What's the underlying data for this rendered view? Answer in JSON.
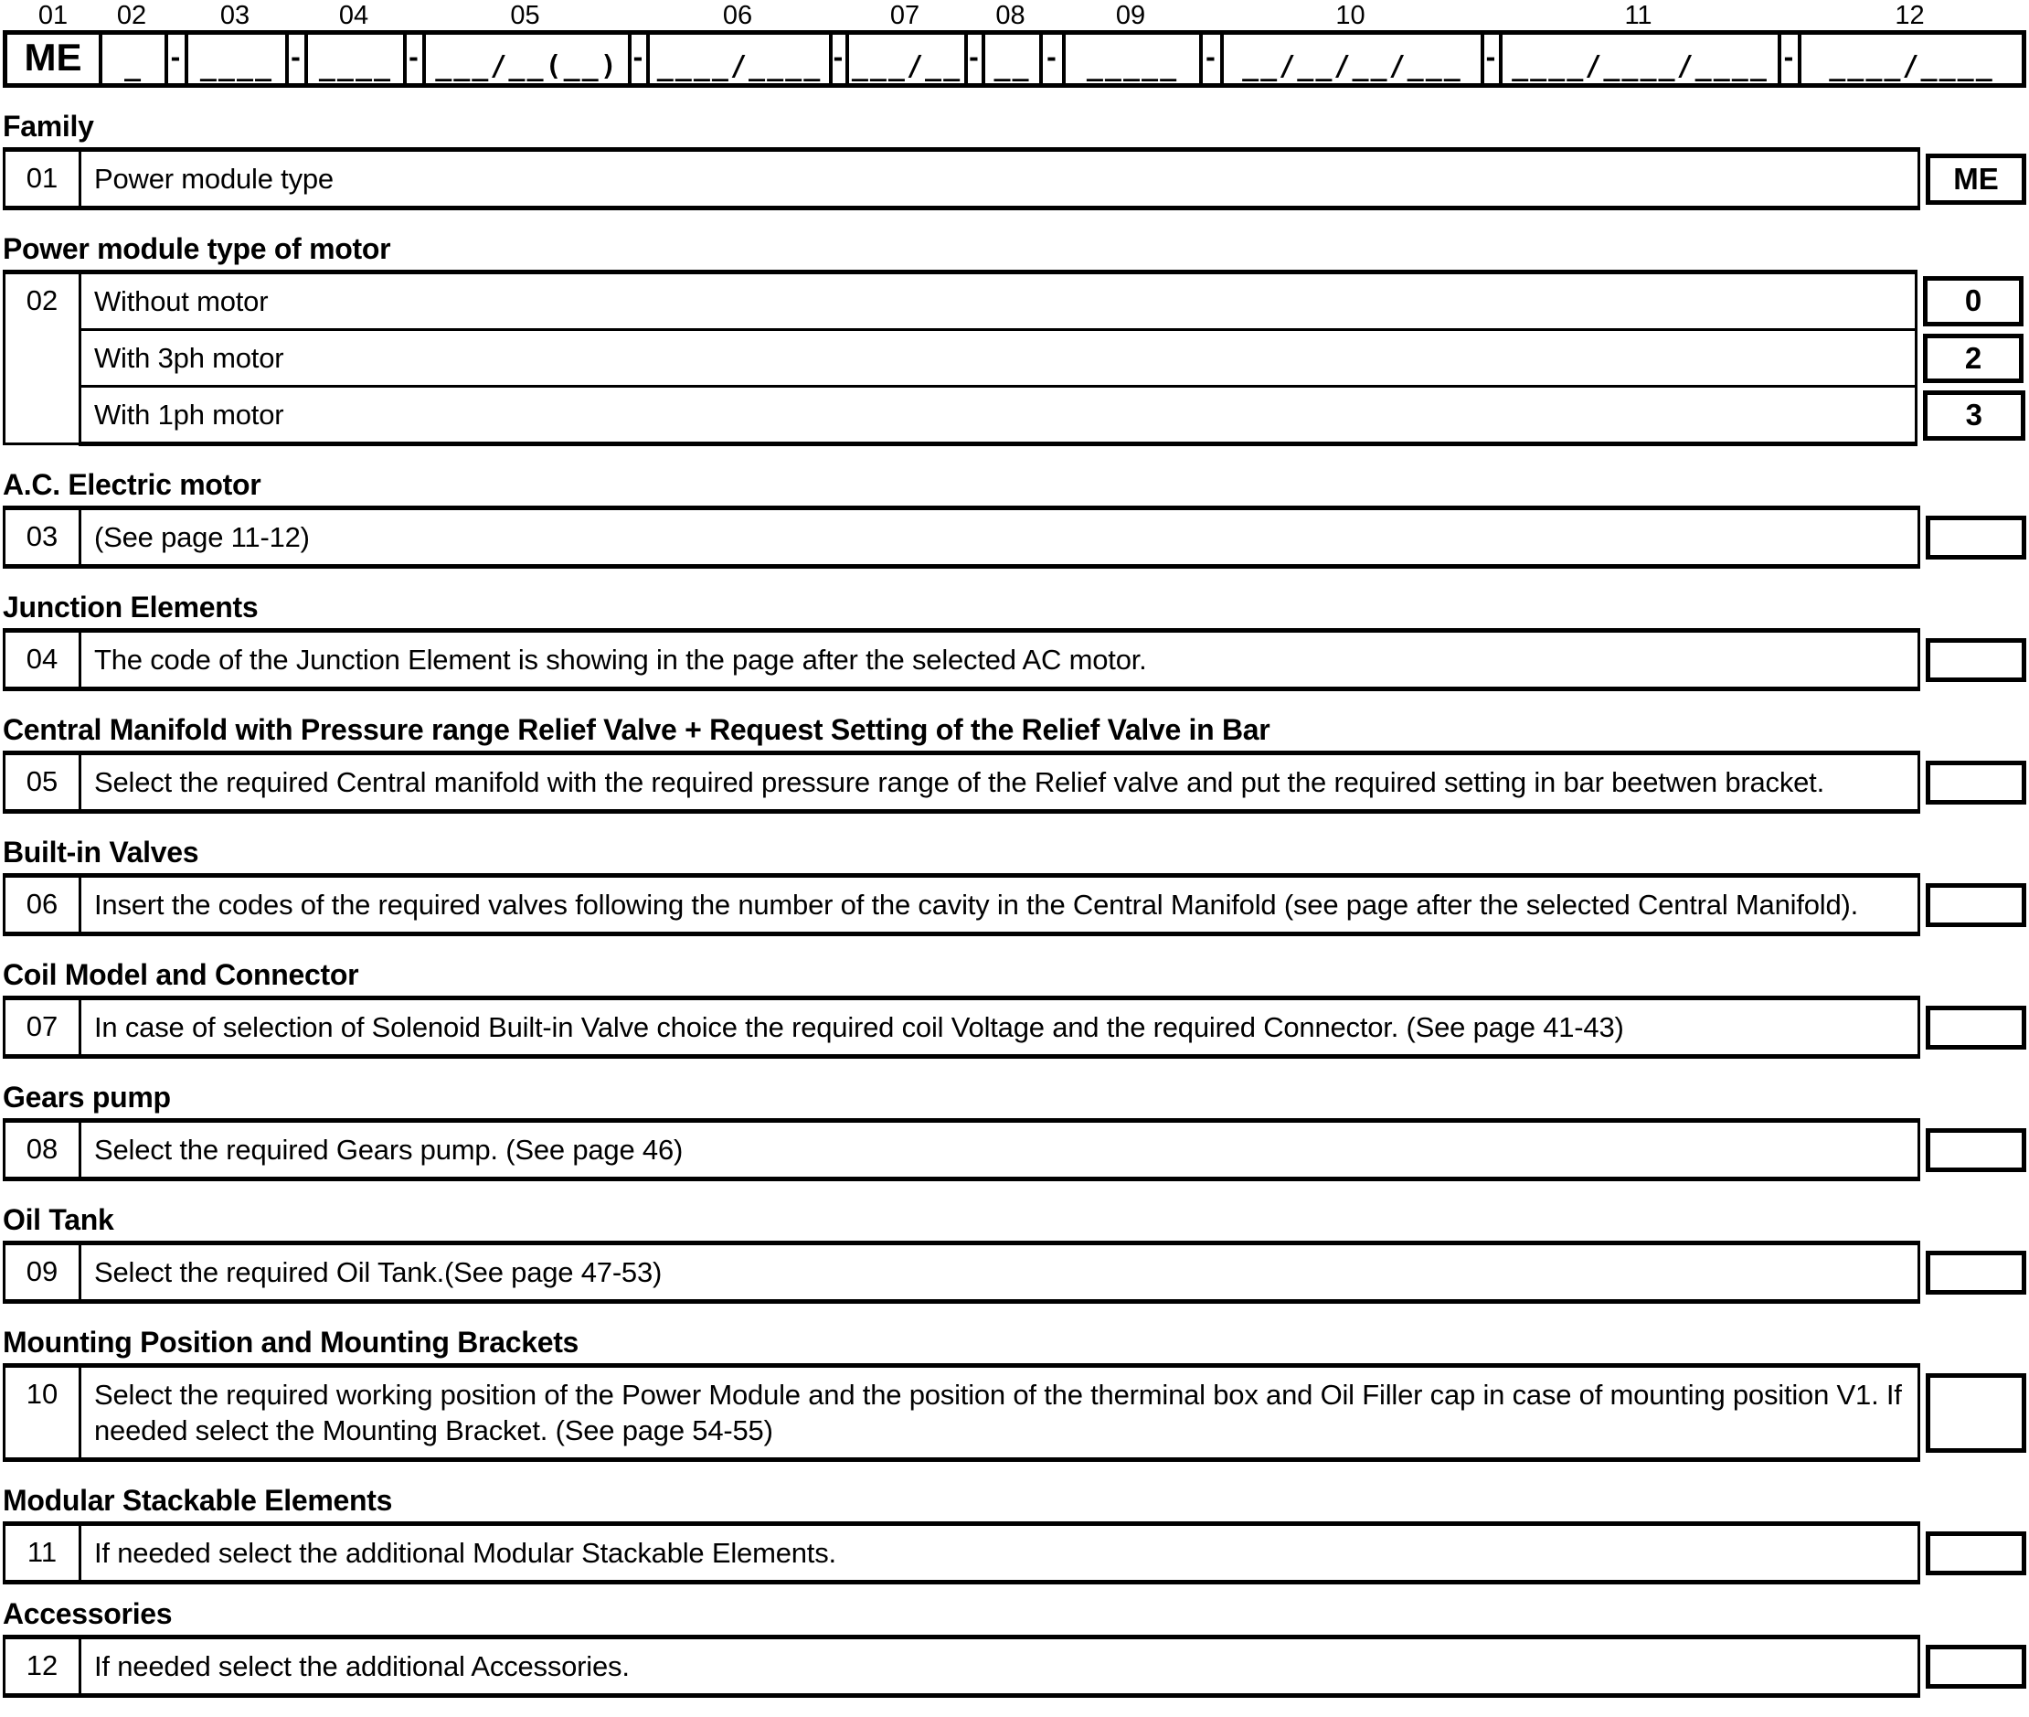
{
  "code_bar": {
    "column_numbers": [
      "01",
      "02",
      "03",
      "04",
      "05",
      "06",
      "07",
      "08",
      "09",
      "10",
      "11",
      "12"
    ],
    "segments": [
      "ME",
      "_",
      "____",
      "____",
      "___/__(__)",
      "____/____",
      "___/__",
      "__",
      "_____",
      "__/__/__/___",
      "____/____/____",
      "____/____"
    ],
    "separator": "-"
  },
  "sections": [
    {
      "title": "Family",
      "num": "01",
      "rows": [
        {
          "desc": "Power module type",
          "value": "ME"
        }
      ]
    },
    {
      "title": "Power module type of motor",
      "num": "02",
      "rows": [
        {
          "desc": "Without motor",
          "value": "0"
        },
        {
          "desc": "With 3ph motor",
          "value": "2"
        },
        {
          "desc": "With 1ph motor",
          "value": "3"
        }
      ]
    },
    {
      "title": "A.C. Electric motor",
      "num": "03",
      "rows": [
        {
          "desc": "(See page 11-12)",
          "value": ""
        }
      ]
    },
    {
      "title": "Junction Elements",
      "num": "04",
      "rows": [
        {
          "desc": "The code of the Junction Element is showing in the page after the selected AC motor.",
          "value": ""
        }
      ]
    },
    {
      "title": "Central Manifold with Pressure range Relief Valve + Request Setting of the Relief Valve in Bar",
      "num": "05",
      "rows": [
        {
          "desc": "Select the required Central manifold with the required pressure range of the Relief valve and put the required setting in bar beetwen bracket.",
          "value": ""
        }
      ]
    },
    {
      "title": "Built-in Valves",
      "num": "06",
      "rows": [
        {
          "desc": "Insert the codes of the required valves following the number of the cavity in the Central Manifold (see page after the selected Central Manifold).",
          "value": ""
        }
      ]
    },
    {
      "title": "Coil Model and Connector",
      "num": "07",
      "rows": [
        {
          "desc": "In case of selection of Solenoid Built-in Valve choice the required coil Voltage and the required Connector. (See page 41-43)",
          "value": ""
        }
      ]
    },
    {
      "title": "Gears pump",
      "num": "08",
      "rows": [
        {
          "desc": "Select the required Gears pump. (See page 46)",
          "value": ""
        }
      ]
    },
    {
      "title": "Oil Tank",
      "num": "09",
      "rows": [
        {
          "desc": "Select the required Oil Tank.(See page 47-53)",
          "value": ""
        }
      ]
    },
    {
      "title": "Mounting Position and Mounting Brackets",
      "num": "10",
      "rows": [
        {
          "desc": "Select the required working position of the Power Module and the position of the therminal box and Oil Filler cap in case of mounting position V1. If needed select the Mounting Bracket. (See page 54-55)",
          "value": ""
        }
      ]
    },
    {
      "title": "Modular Stackable Elements",
      "num": "11",
      "rows": [
        {
          "desc": "If needed select the additional Modular Stackable Elements.",
          "value": ""
        }
      ]
    },
    {
      "title": "Accessories",
      "num": "12",
      "rows": [
        {
          "desc": "If needed select the additional Accessories.",
          "value": ""
        }
      ]
    }
  ]
}
